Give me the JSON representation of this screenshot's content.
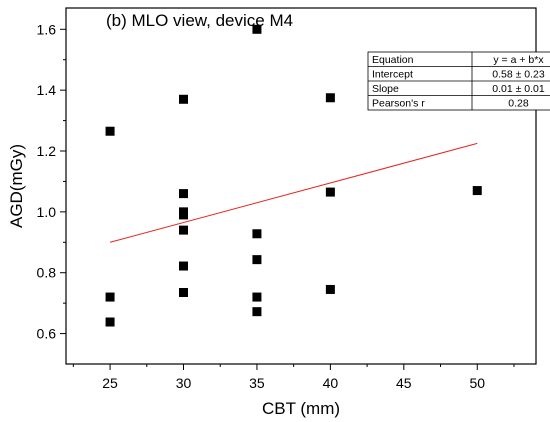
{
  "chart_data": {
    "type": "scatter",
    "title": "(b) MLO view,  device M4",
    "xlabel": "CBT (mm)",
    "ylabel": "AGD(mGy)",
    "xlim": [
      22,
      54
    ],
    "ylim": [
      0.5,
      1.67
    ],
    "xticks": [
      25,
      30,
      35,
      40,
      45,
      50
    ],
    "yticks": [
      0.6,
      0.8,
      1.0,
      1.2,
      1.4,
      1.6
    ],
    "grid": false,
    "series": [
      {
        "x": [
          25,
          25,
          25,
          30,
          30,
          30,
          30,
          30,
          30,
          30,
          35,
          35,
          35,
          35,
          35,
          40,
          40,
          40,
          50
        ],
        "y": [
          1.265,
          0.72,
          0.638,
          1.37,
          1.06,
          0.99,
          0.94,
          0.822,
          0.735,
          1.0,
          1.6,
          0.928,
          0.843,
          0.72,
          0.672,
          1.375,
          1.065,
          0.745,
          1.07
        ],
        "marker": "square",
        "color": "#000000"
      }
    ],
    "fit_line": {
      "x": [
        25,
        50
      ],
      "y": [
        0.9,
        1.225
      ],
      "color": "#e8231e"
    },
    "fit_table": {
      "rows": [
        [
          "Equation",
          "y = a + b*x"
        ],
        [
          "Intercept",
          "0.58 ± 0.23"
        ],
        [
          "Slope",
          "0.01 ± 0.01"
        ],
        [
          "Pearson's r",
          "0.28"
        ]
      ]
    }
  }
}
